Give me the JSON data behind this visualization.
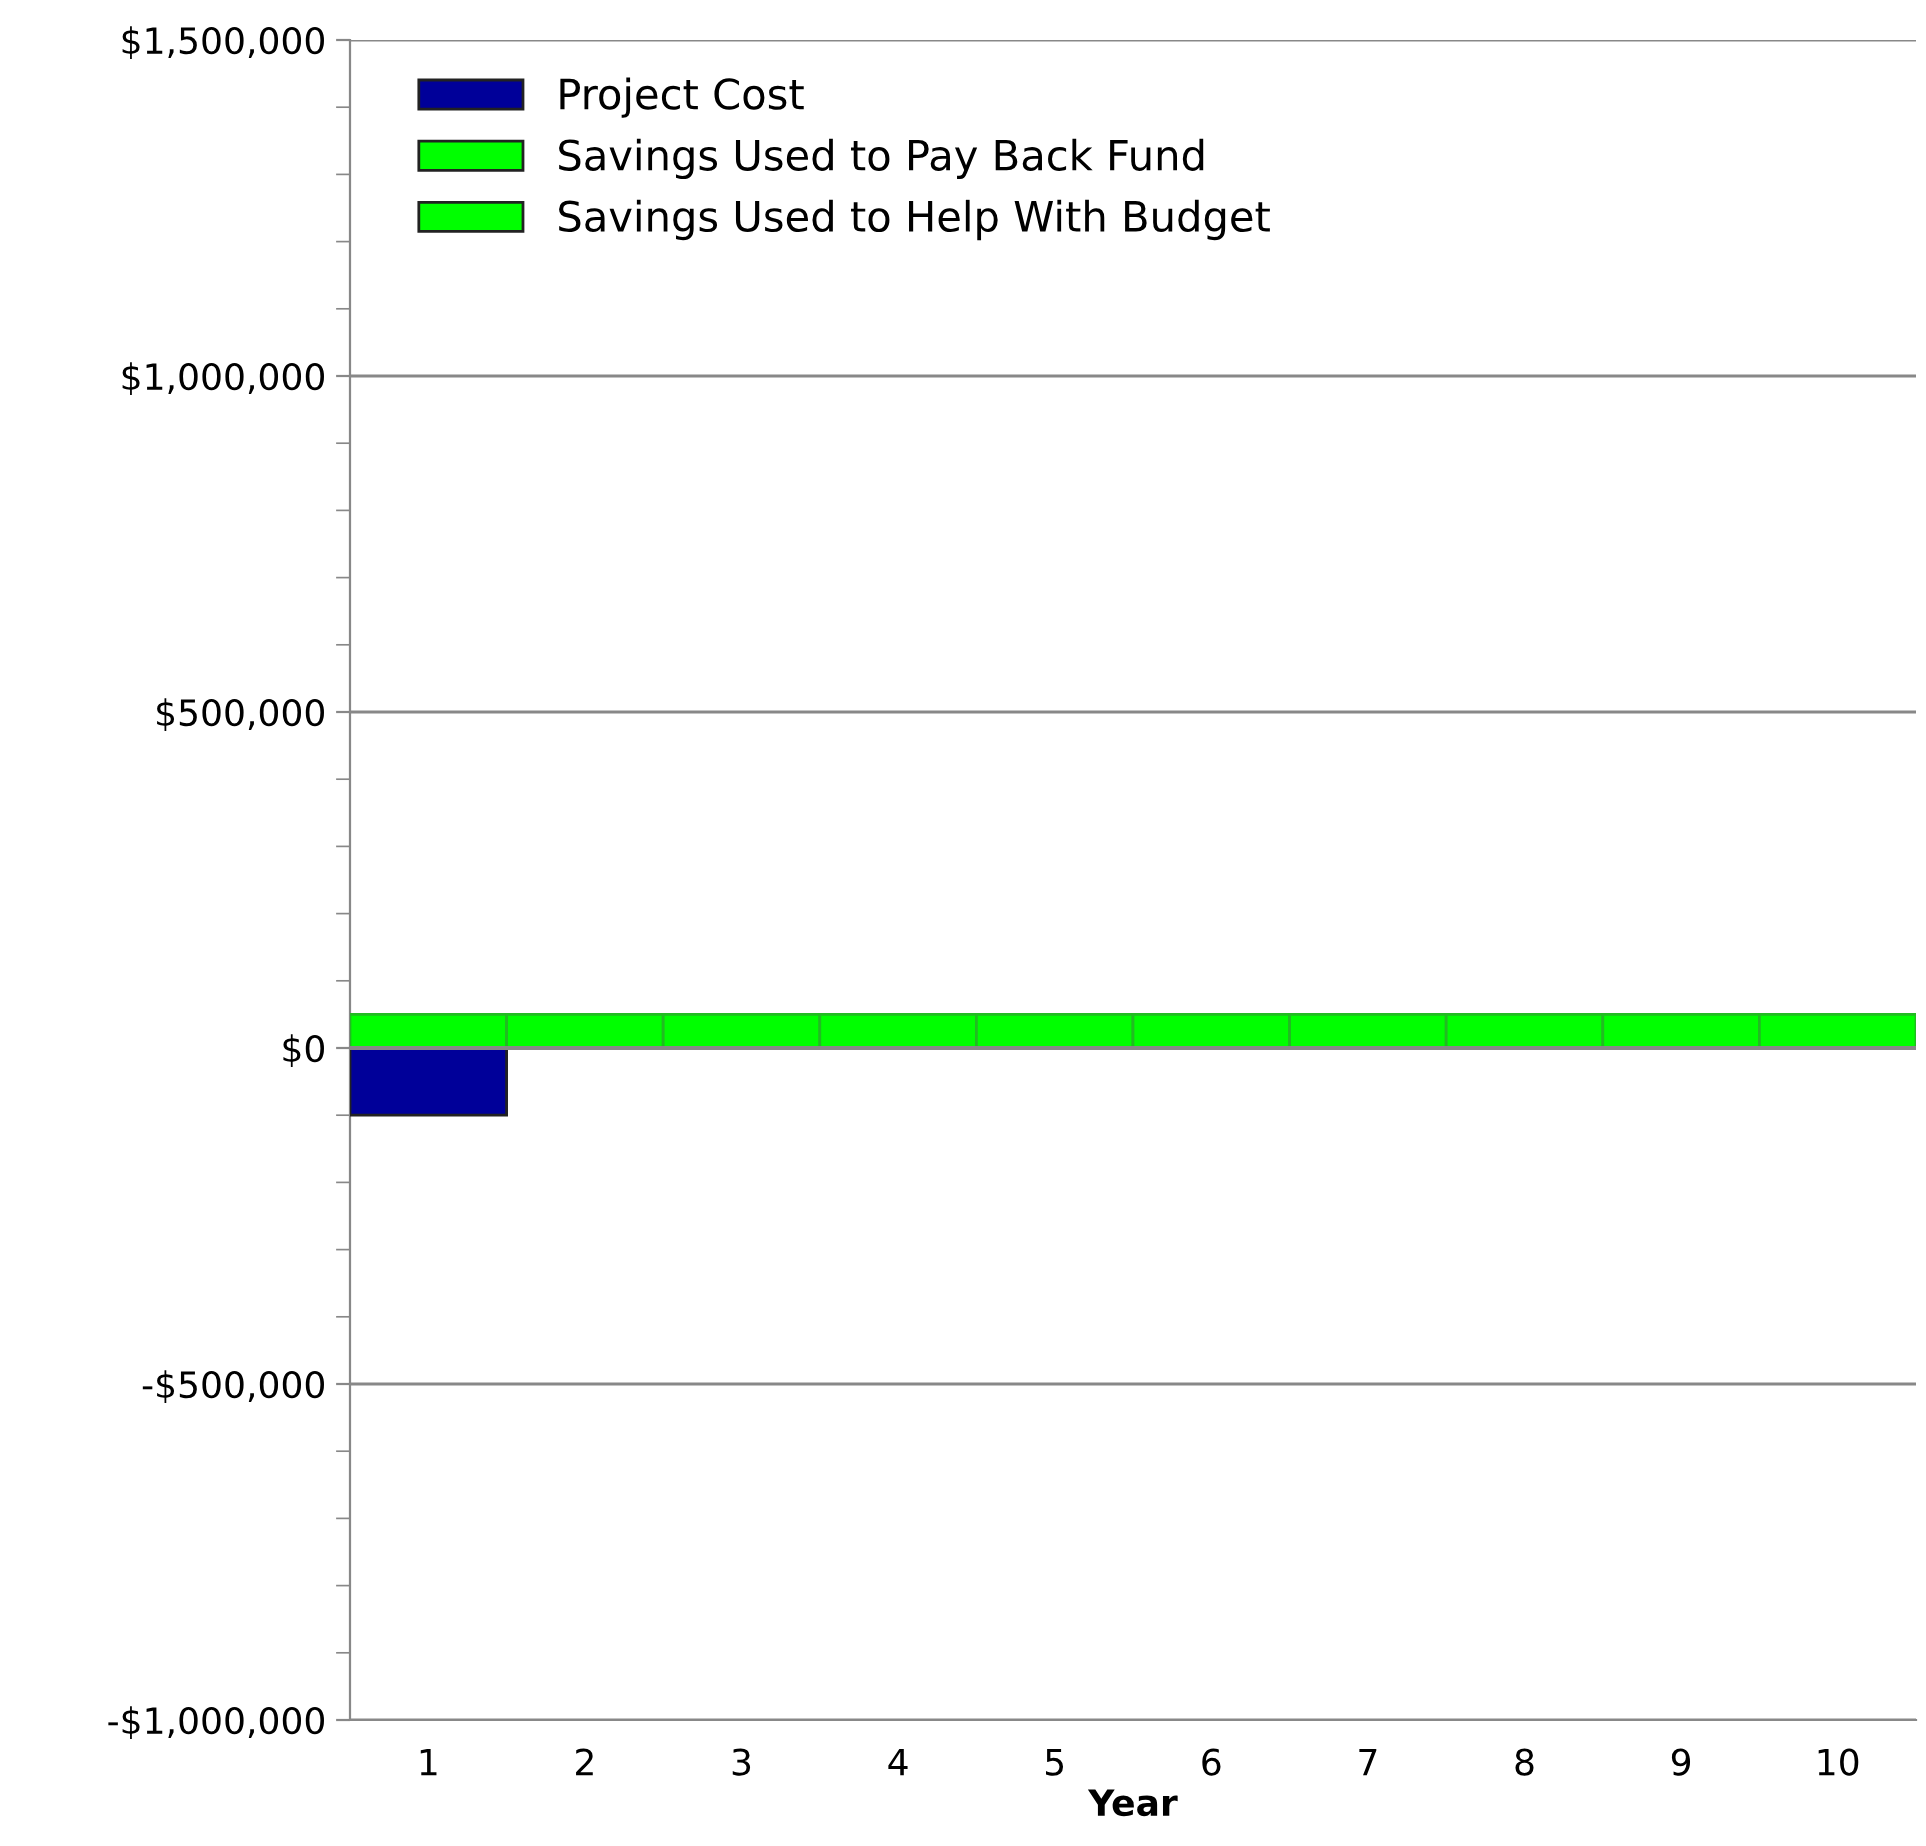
{
  "chart_data": {
    "type": "bar",
    "xlabel": "Year",
    "categories": [
      "1",
      "2",
      "3",
      "4",
      "5",
      "6",
      "7",
      "8",
      "9",
      "10"
    ],
    "series": [
      {
        "name": "Project Cost",
        "color": "#000099",
        "values": [
          -100000,
          null,
          null,
          null,
          null,
          null,
          null,
          null,
          null,
          null
        ]
      },
      {
        "name": "Savings Used to Pay Back Fund",
        "color": "#00ff00",
        "values": [
          50000,
          50000,
          null,
          null,
          null,
          null,
          null,
          null,
          null,
          null
        ]
      },
      {
        "name": "Savings Used to Help With Budget",
        "color": "#00ff00",
        "values": [
          null,
          null,
          50000,
          50000,
          50000,
          50000,
          50000,
          50000,
          50000,
          50000
        ]
      }
    ],
    "ylim": [
      -1000000,
      1500000
    ],
    "yticks": [
      {
        "value": -1000000,
        "label": "-$1,000,000"
      },
      {
        "value": -500000,
        "label": "-$500,000"
      },
      {
        "value": 0,
        "label": "$0"
      },
      {
        "value": 500000,
        "label": "$500,000"
      },
      {
        "value": 1000000,
        "label": "$1,000,000"
      },
      {
        "value": 1500000,
        "label": "$1,500,000"
      }
    ],
    "grid": "y",
    "legend": "top left"
  }
}
